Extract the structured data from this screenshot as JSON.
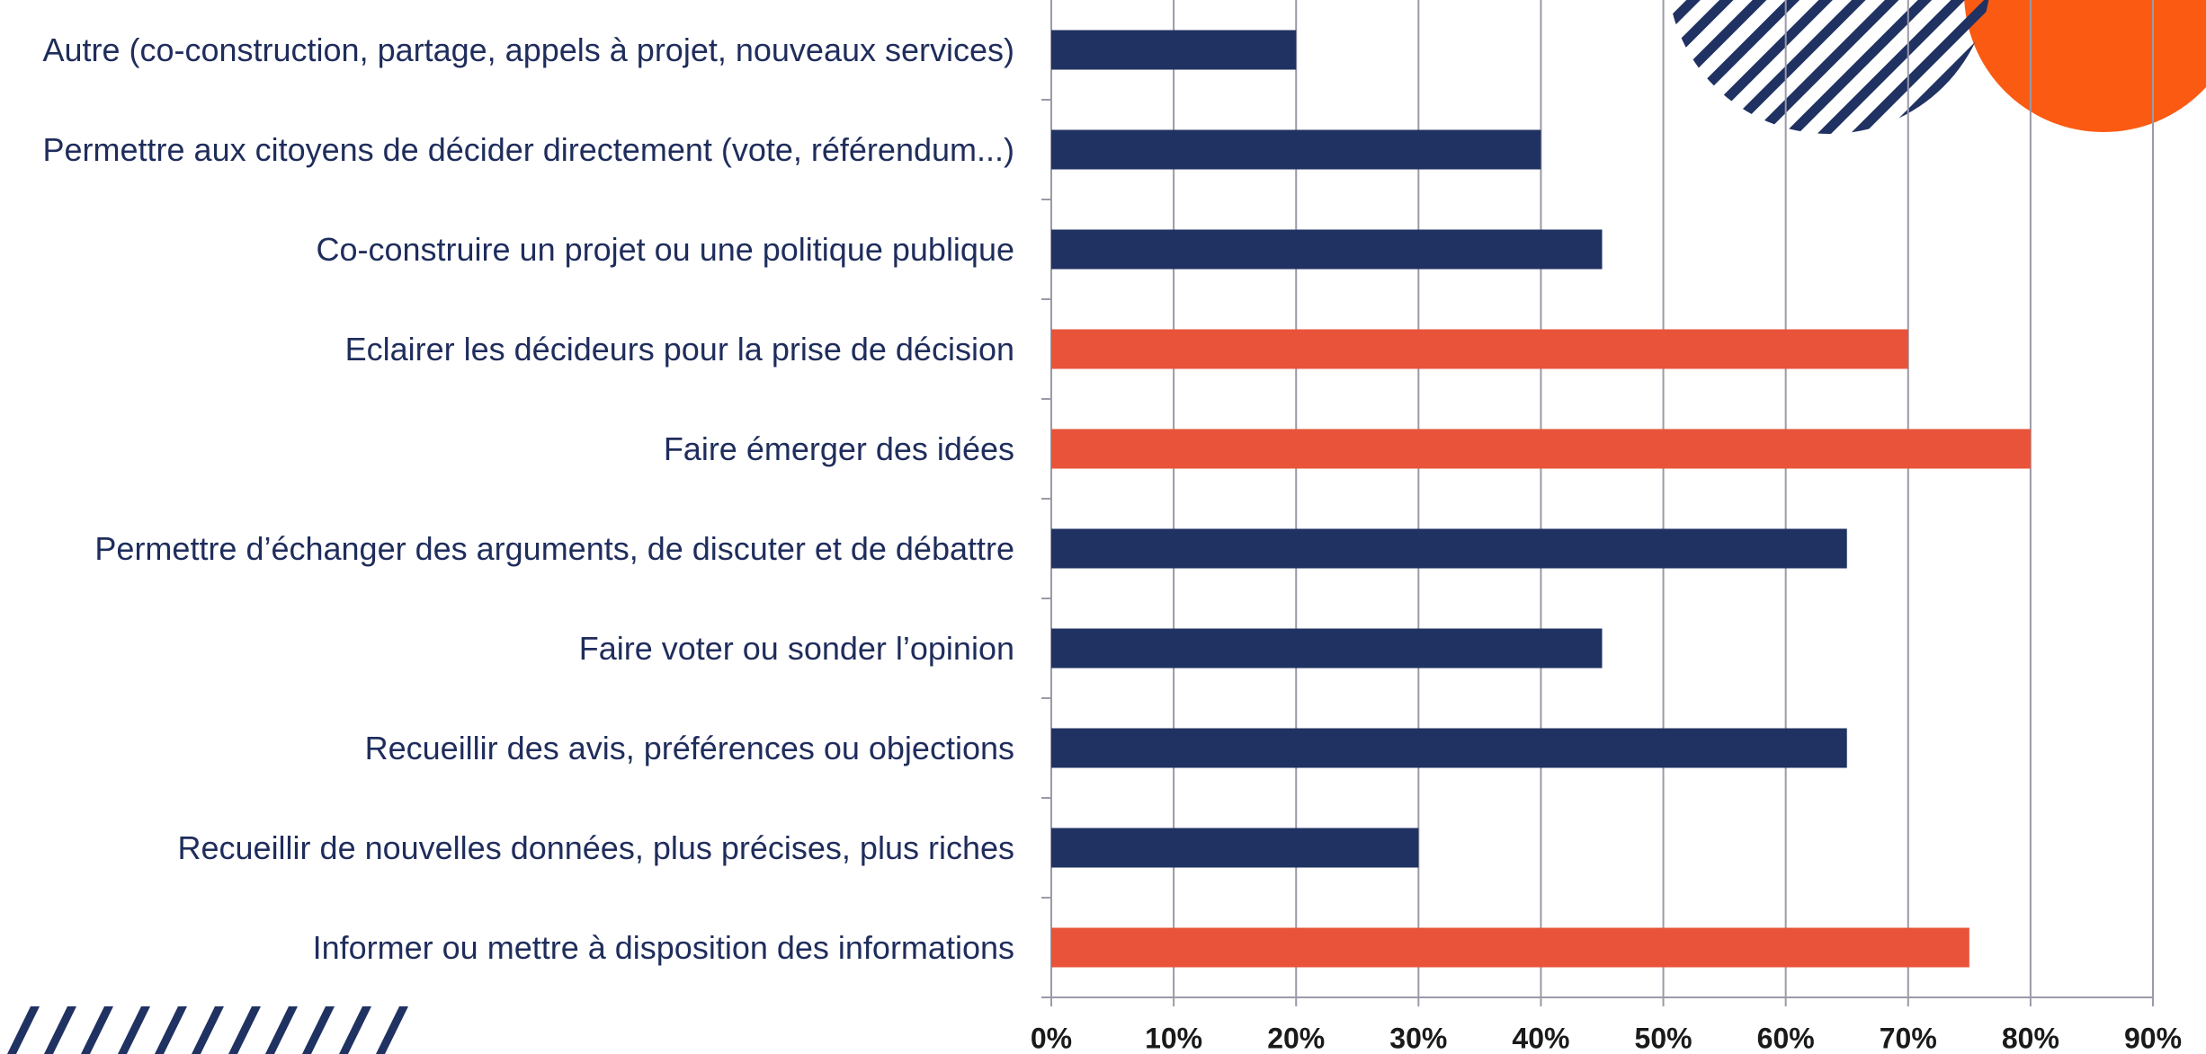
{
  "chart_data": {
    "type": "hbar",
    "categories": [
      "Autre (co-construction, partage, appels à projet, nouveaux services)",
      "Permettre aux citoyens de décider directement (vote, référendum...)",
      "Co-construire un projet ou une politique publique",
      "Eclairer les décideurs pour la prise de décision",
      "Faire émerger des idées",
      "Permettre d’échanger des arguments, de discuter et de débattre",
      "Faire voter ou sonder l’opinion",
      "Recueillir des avis, préférences ou objections",
      "Recueillir de nouvelles données, plus précises, plus riches",
      "Informer ou mettre à disposition des informations"
    ],
    "values": [
      20,
      40,
      45,
      70,
      80,
      65,
      45,
      65,
      30,
      75
    ],
    "colors": [
      "#203262",
      "#203262",
      "#203262",
      "#e8533a",
      "#e8533a",
      "#203262",
      "#203262",
      "#203262",
      "#203262",
      "#e8533a"
    ],
    "xlim": [
      0,
      90
    ],
    "xticks": [
      {
        "value": 0,
        "label": "0%"
      },
      {
        "value": 10,
        "label": "10%"
      },
      {
        "value": 20,
        "label": "20%"
      },
      {
        "value": 30,
        "label": "30%"
      },
      {
        "value": 40,
        "label": "40%"
      },
      {
        "value": 50,
        "label": "50%"
      },
      {
        "value": 60,
        "label": "60%"
      },
      {
        "value": 70,
        "label": "70%"
      },
      {
        "value": 80,
        "label": "80%"
      },
      {
        "value": 90,
        "label": "90%"
      }
    ],
    "grid": true
  }
}
